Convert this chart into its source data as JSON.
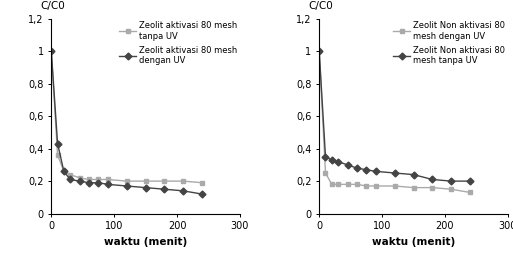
{
  "left": {
    "series1": {
      "label": "Zeolit aktivasi 80 mesh\ntanpa UV",
      "color": "#aaaaaa",
      "marker": "s",
      "x": [
        0,
        10,
        20,
        30,
        45,
        60,
        75,
        90,
        120,
        150,
        180,
        210,
        240
      ],
      "y": [
        1.0,
        0.36,
        0.26,
        0.24,
        0.22,
        0.21,
        0.21,
        0.21,
        0.2,
        0.2,
        0.2,
        0.2,
        0.19
      ]
    },
    "series2": {
      "label": "Zeolit aktivasi 80 mesh\ndengan UV",
      "color": "#444444",
      "marker": "D",
      "x": [
        0,
        10,
        20,
        30,
        45,
        60,
        75,
        90,
        120,
        150,
        180,
        210,
        240
      ],
      "y": [
        1.0,
        0.43,
        0.26,
        0.21,
        0.2,
        0.19,
        0.19,
        0.18,
        0.17,
        0.16,
        0.15,
        0.14,
        0.12
      ]
    },
    "xlabel": "waktu (menit)",
    "ylabel": "C/C0",
    "xlim": [
      0,
      300
    ],
    "ylim": [
      0,
      1.2
    ],
    "yticks": [
      0,
      0.2,
      0.4,
      0.6,
      0.8,
      1.0,
      1.2
    ],
    "ytick_labels": [
      "0",
      "0,2",
      "0,4",
      "0,6",
      "0,8",
      "1",
      "1,2"
    ],
    "xticks": [
      0,
      100,
      200,
      300
    ],
    "xtick_labels": [
      "0",
      "100",
      "200",
      "300"
    ]
  },
  "right": {
    "series1": {
      "label": "Zeolit Non aktivasi 80\nmesh dengan UV",
      "color": "#aaaaaa",
      "marker": "s",
      "x": [
        0,
        10,
        20,
        30,
        45,
        60,
        75,
        90,
        120,
        150,
        180,
        210,
        240
      ],
      "y": [
        1.0,
        0.25,
        0.18,
        0.18,
        0.18,
        0.18,
        0.17,
        0.17,
        0.17,
        0.16,
        0.16,
        0.15,
        0.13
      ]
    },
    "series2": {
      "label": "Zeolit Non aktivasi 80\nmesh tanpa UV",
      "color": "#444444",
      "marker": "D",
      "x": [
        0,
        10,
        20,
        30,
        45,
        60,
        75,
        90,
        120,
        150,
        180,
        210,
        240
      ],
      "y": [
        1.0,
        0.35,
        0.33,
        0.32,
        0.3,
        0.28,
        0.27,
        0.26,
        0.25,
        0.24,
        0.21,
        0.2,
        0.2
      ]
    },
    "xlabel": "waktu (menit)",
    "ylabel": "C/C0",
    "xlim": [
      0,
      300
    ],
    "ylim": [
      0,
      1.2
    ],
    "yticks": [
      0,
      0.2,
      0.4,
      0.6,
      0.8,
      1.0,
      1.2
    ],
    "ytick_labels": [
      "0",
      "0,2",
      "0,4",
      "0,6",
      "0,8",
      "1",
      "1,2"
    ],
    "xticks": [
      0,
      100,
      200,
      300
    ],
    "xtick_labels": [
      "0",
      "100",
      "200",
      "300"
    ]
  },
  "background_color": "#ffffff",
  "fontsize_label": 7.5,
  "fontsize_tick": 7,
  "fontsize_legend": 6.0,
  "fontsize_ylabel": 7.5
}
